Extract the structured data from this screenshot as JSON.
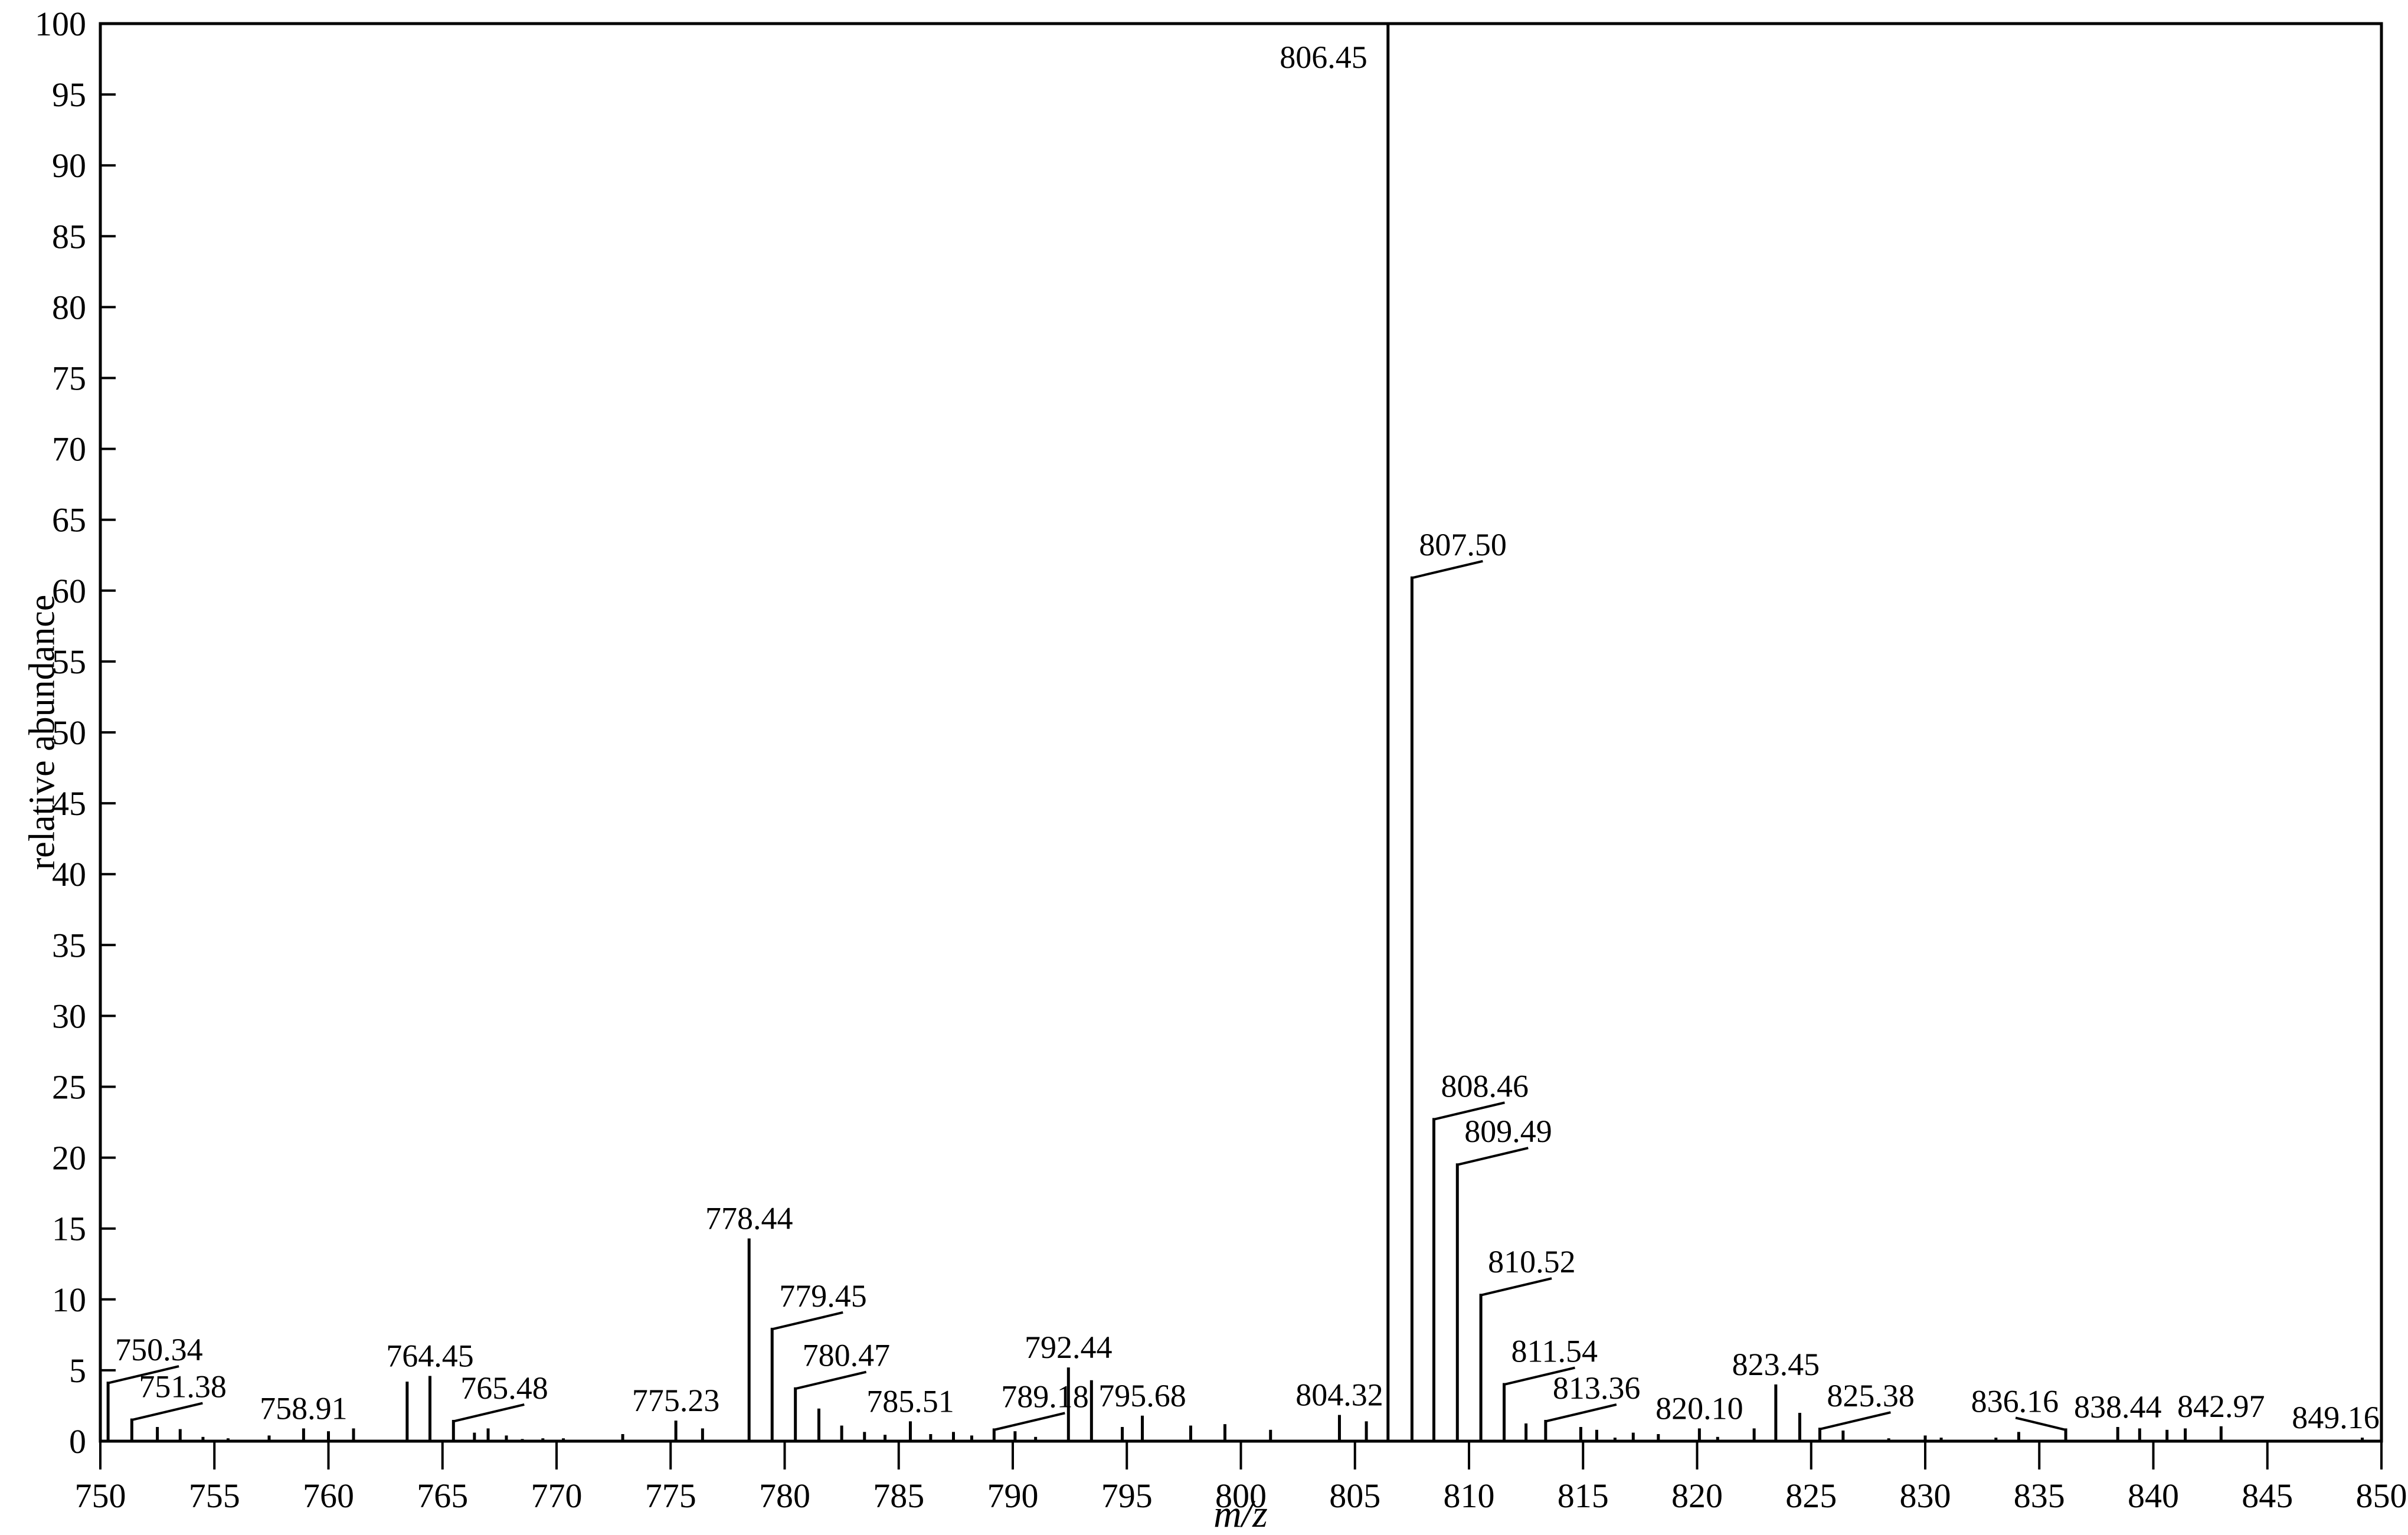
{
  "colors": {
    "foreground": "#000000",
    "background": "#ffffff"
  },
  "chart_data": {
    "type": "bar",
    "title": "",
    "xlabel": "m/z",
    "ylabel": "relative abundance",
    "xlim": [
      750,
      850
    ],
    "ylim": [
      0,
      100
    ],
    "grid": false,
    "legend": "none",
    "x_ticks": [
      750,
      755,
      760,
      765,
      770,
      775,
      780,
      785,
      790,
      795,
      800,
      805,
      810,
      815,
      820,
      825,
      830,
      835,
      840,
      845,
      850
    ],
    "y_ticks": [
      0,
      5,
      10,
      15,
      20,
      25,
      30,
      35,
      40,
      45,
      50,
      55,
      60,
      65,
      70,
      75,
      80,
      85,
      90,
      95,
      100
    ],
    "peaks": [
      {
        "mz": 750.34,
        "value": 4.2,
        "label": "750.34",
        "label_style": "leader-right"
      },
      {
        "mz": 751.38,
        "value": 1.6,
        "label": "751.38",
        "label_style": "leader-right"
      },
      {
        "mz": 752.5,
        "value": 1.0
      },
      {
        "mz": 753.5,
        "value": 0.85
      },
      {
        "mz": 754.5,
        "value": 0.3
      },
      {
        "mz": 755.6,
        "value": 0.2
      },
      {
        "mz": 757.4,
        "value": 0.4
      },
      {
        "mz": 758.91,
        "value": 0.9,
        "label": "758.91",
        "label_style": "center"
      },
      {
        "mz": 760.0,
        "value": 0.7
      },
      {
        "mz": 761.1,
        "value": 0.9
      },
      {
        "mz": 763.45,
        "value": 4.2
      },
      {
        "mz": 764.45,
        "value": 4.6,
        "label": "764.45",
        "label_style": "center"
      },
      {
        "mz": 765.48,
        "value": 1.5,
        "label": "765.48",
        "label_style": "leader-right"
      },
      {
        "mz": 766.4,
        "value": 0.6
      },
      {
        "mz": 767.0,
        "value": 0.9
      },
      {
        "mz": 767.8,
        "value": 0.4
      },
      {
        "mz": 768.5,
        "value": 0.15
      },
      {
        "mz": 769.4,
        "value": 0.2
      },
      {
        "mz": 770.3,
        "value": 0.2
      },
      {
        "mz": 772.9,
        "value": 0.5
      },
      {
        "mz": 775.23,
        "value": 1.45,
        "label": "775.23",
        "label_style": "center"
      },
      {
        "mz": 776.4,
        "value": 0.9
      },
      {
        "mz": 778.44,
        "value": 14.3,
        "label": "778.44",
        "label_style": "center"
      },
      {
        "mz": 779.45,
        "value": 8.0,
        "label": "779.45",
        "label_style": "leader-right"
      },
      {
        "mz": 780.47,
        "value": 3.8,
        "label": "780.47",
        "label_style": "leader-right"
      },
      {
        "mz": 781.5,
        "value": 2.3
      },
      {
        "mz": 782.5,
        "value": 1.1
      },
      {
        "mz": 783.5,
        "value": 0.65
      },
      {
        "mz": 784.4,
        "value": 0.45
      },
      {
        "mz": 785.51,
        "value": 1.4,
        "label": "785.51",
        "label_style": "center"
      },
      {
        "mz": 786.4,
        "value": 0.5
      },
      {
        "mz": 787.4,
        "value": 0.65
      },
      {
        "mz": 788.2,
        "value": 0.4
      },
      {
        "mz": 789.18,
        "value": 0.9,
        "label": "789.18",
        "label_style": "leader-right"
      },
      {
        "mz": 790.1,
        "value": 0.7
      },
      {
        "mz": 791.0,
        "value": 0.3
      },
      {
        "mz": 792.44,
        "value": 5.2,
        "label": "792.44",
        "label_style": "center"
      },
      {
        "mz": 793.45,
        "value": 4.3
      },
      {
        "mz": 794.8,
        "value": 1.0
      },
      {
        "mz": 795.68,
        "value": 1.8,
        "label": "795.68",
        "label_style": "center"
      },
      {
        "mz": 797.8,
        "value": 1.1
      },
      {
        "mz": 799.3,
        "value": 1.2
      },
      {
        "mz": 801.3,
        "value": 0.8
      },
      {
        "mz": 804.32,
        "value": 1.85,
        "label": "804.32",
        "label_style": "center"
      },
      {
        "mz": 805.5,
        "value": 1.4
      },
      {
        "mz": 806.45,
        "value": 100,
        "label": "806.45",
        "label_style": "left-top"
      },
      {
        "mz": 807.5,
        "value": 61.0,
        "label": "807.50",
        "label_style": "leader-right"
      },
      {
        "mz": 808.46,
        "value": 22.8,
        "label": "808.46",
        "label_style": "leader-right"
      },
      {
        "mz": 809.49,
        "value": 19.6,
        "label": "809.49",
        "label_style": "leader-right"
      },
      {
        "mz": 810.52,
        "value": 10.4,
        "label": "810.52",
        "label_style": "leader-right"
      },
      {
        "mz": 811.54,
        "value": 4.1,
        "label": "811.54",
        "label_style": "leader-right"
      },
      {
        "mz": 812.5,
        "value": 1.25
      },
      {
        "mz": 813.36,
        "value": 1.5,
        "label": "813.36",
        "label_style": "leader-right"
      },
      {
        "mz": 814.9,
        "value": 1.0
      },
      {
        "mz": 815.6,
        "value": 0.8
      },
      {
        "mz": 816.4,
        "value": 0.25
      },
      {
        "mz": 817.2,
        "value": 0.6
      },
      {
        "mz": 818.3,
        "value": 0.5
      },
      {
        "mz": 820.1,
        "value": 0.9,
        "label": "820.10",
        "label_style": "center"
      },
      {
        "mz": 820.9,
        "value": 0.3
      },
      {
        "mz": 822.5,
        "value": 0.9
      },
      {
        "mz": 823.45,
        "value": 4.0,
        "label": "823.45",
        "label_style": "center"
      },
      {
        "mz": 824.5,
        "value": 2.0
      },
      {
        "mz": 825.38,
        "value": 0.95,
        "label": "825.38",
        "label_style": "leader-right"
      },
      {
        "mz": 826.4,
        "value": 0.75
      },
      {
        "mz": 828.4,
        "value": 0.2
      },
      {
        "mz": 830.0,
        "value": 0.4
      },
      {
        "mz": 830.7,
        "value": 0.25
      },
      {
        "mz": 833.1,
        "value": 0.25
      },
      {
        "mz": 834.1,
        "value": 0.65
      },
      {
        "mz": 836.16,
        "value": 0.9,
        "label": "836.16",
        "label_style": "leader-left"
      },
      {
        "mz": 838.44,
        "value": 1.0,
        "label": "838.44",
        "label_style": "center"
      },
      {
        "mz": 839.4,
        "value": 0.9
      },
      {
        "mz": 840.6,
        "value": 0.8
      },
      {
        "mz": 841.4,
        "value": 0.9
      },
      {
        "mz": 842.97,
        "value": 1.05,
        "label": "842.97",
        "label_style": "center"
      },
      {
        "mz": 849.16,
        "value": 0.25,
        "label": "849.16",
        "label_style": "center",
        "label_dx": -45
      }
    ]
  }
}
